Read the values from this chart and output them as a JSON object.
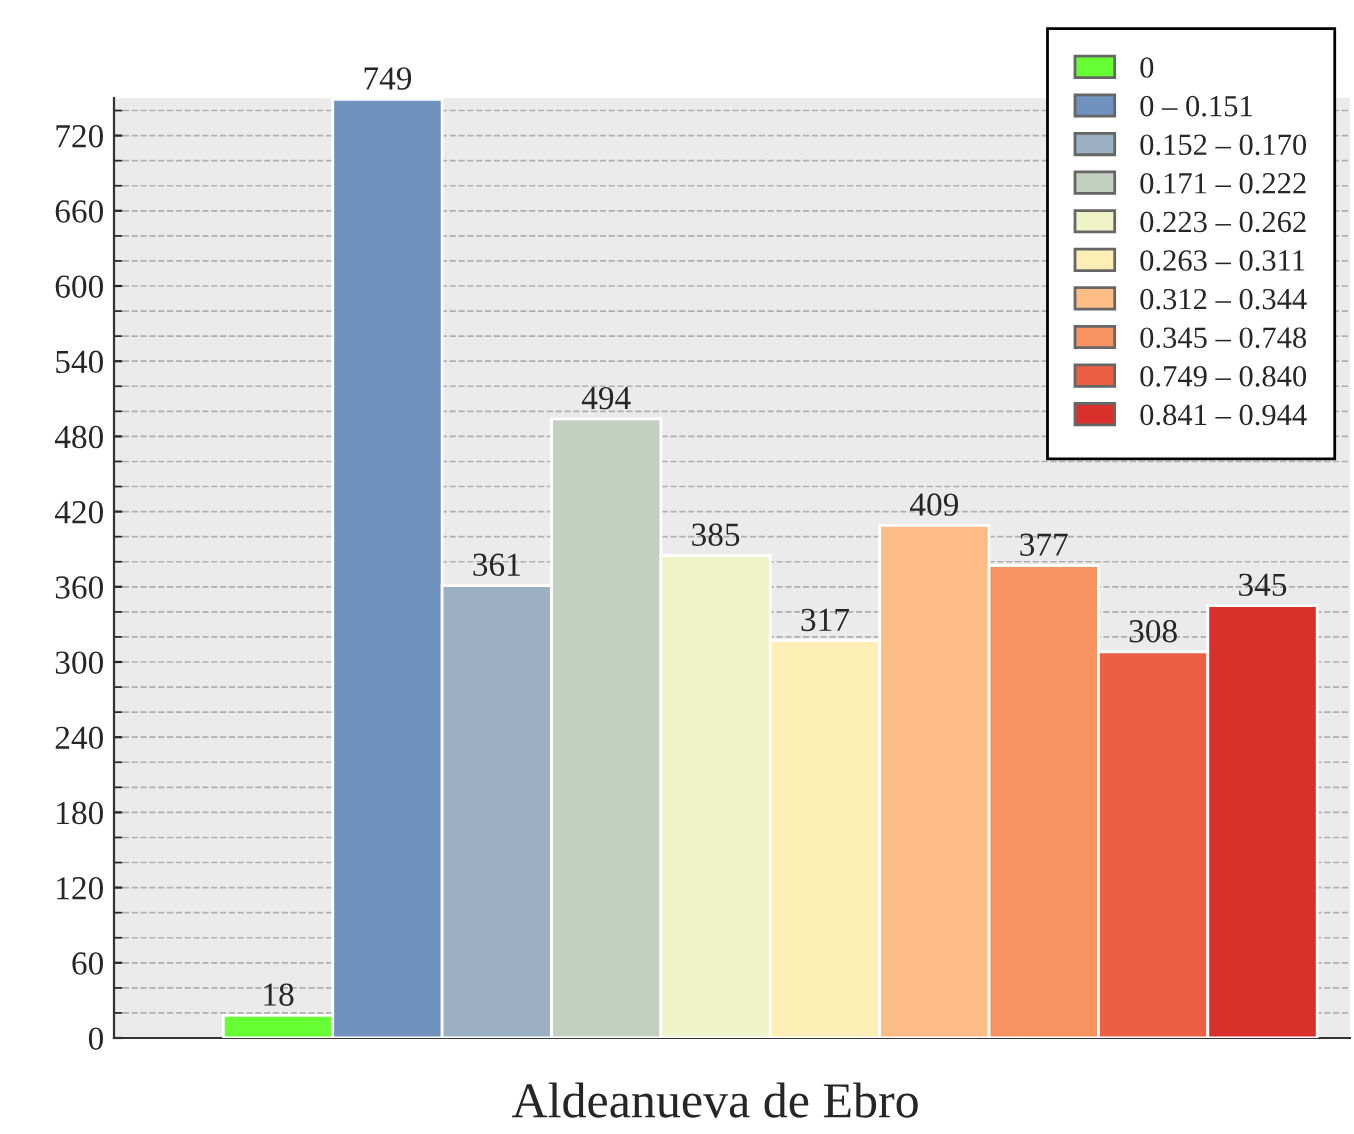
{
  "chart_data": {
    "type": "bar",
    "categories": [
      "Aldeanueva de Ebro"
    ],
    "series": [
      {
        "name": "0",
        "color": "#66ff33",
        "values": [
          18
        ]
      },
      {
        "name": "0 – 0.151",
        "color": "#7092be",
        "values": [
          749
        ]
      },
      {
        "name": "0.152 – 0.170",
        "color": "#9bb0c3",
        "values": [
          361
        ]
      },
      {
        "name": "0.171 – 0.222",
        "color": "#c3cfc0",
        "values": [
          494
        ]
      },
      {
        "name": "0.223 – 0.262",
        "color": "#eef3c8",
        "values": [
          385
        ]
      },
      {
        "name": "0.263 – 0.311",
        "color": "#fdeeb5",
        "values": [
          317
        ]
      },
      {
        "name": "0.312 – 0.344",
        "color": "#fdbb85",
        "values": [
          409
        ]
      },
      {
        "name": "0.345 – 0.748",
        "color": "#f99261",
        "values": [
          377
        ]
      },
      {
        "name": "0.749 – 0.840",
        "color": "#ec5f45",
        "values": [
          308
        ]
      },
      {
        "name": "0.841 – 0.944",
        "color": "#d9302c",
        "values": [
          345
        ]
      }
    ],
    "ylim": [
      0,
      750
    ],
    "yticks": [
      0,
      60,
      120,
      180,
      240,
      300,
      360,
      420,
      480,
      540,
      600,
      660,
      720
    ],
    "grid": "y",
    "legend": "top right",
    "data_labels": true
  }
}
